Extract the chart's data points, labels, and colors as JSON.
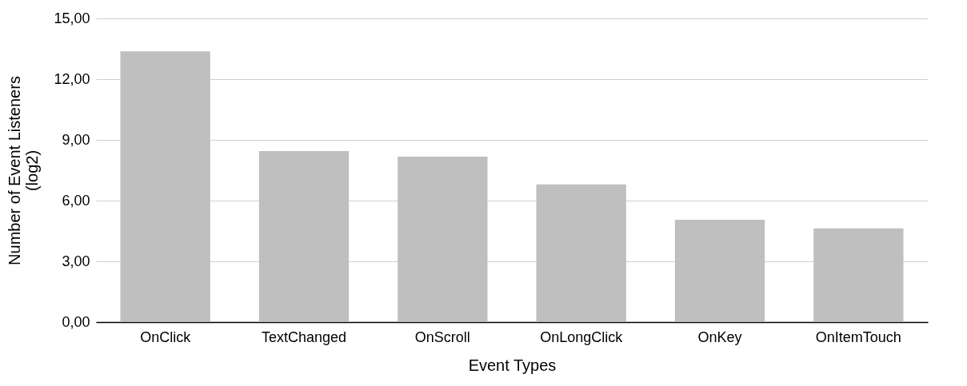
{
  "chart_data": {
    "type": "bar",
    "xlabel": "Event Types",
    "ylabel": "Number of Event Listeners (log2)",
    "categories": [
      "OnClick",
      "TextChanged",
      "OnScroll",
      "OnLongClick",
      "OnKey",
      "OnItemTouch"
    ],
    "values": [
      13.37,
      8.45,
      8.17,
      6.8,
      5.05,
      4.63
    ],
    "color": "#bfbfbf",
    "ylim": [
      0,
      15
    ],
    "yticks": [
      {
        "value": 0,
        "label": "0,00"
      },
      {
        "value": 3,
        "label": "3,00"
      },
      {
        "value": 6,
        "label": "6,00"
      },
      {
        "value": 9,
        "label": "9,00"
      },
      {
        "value": 12,
        "label": "12,00"
      },
      {
        "value": 15,
        "label": "15,00"
      }
    ],
    "grid": "y"
  }
}
